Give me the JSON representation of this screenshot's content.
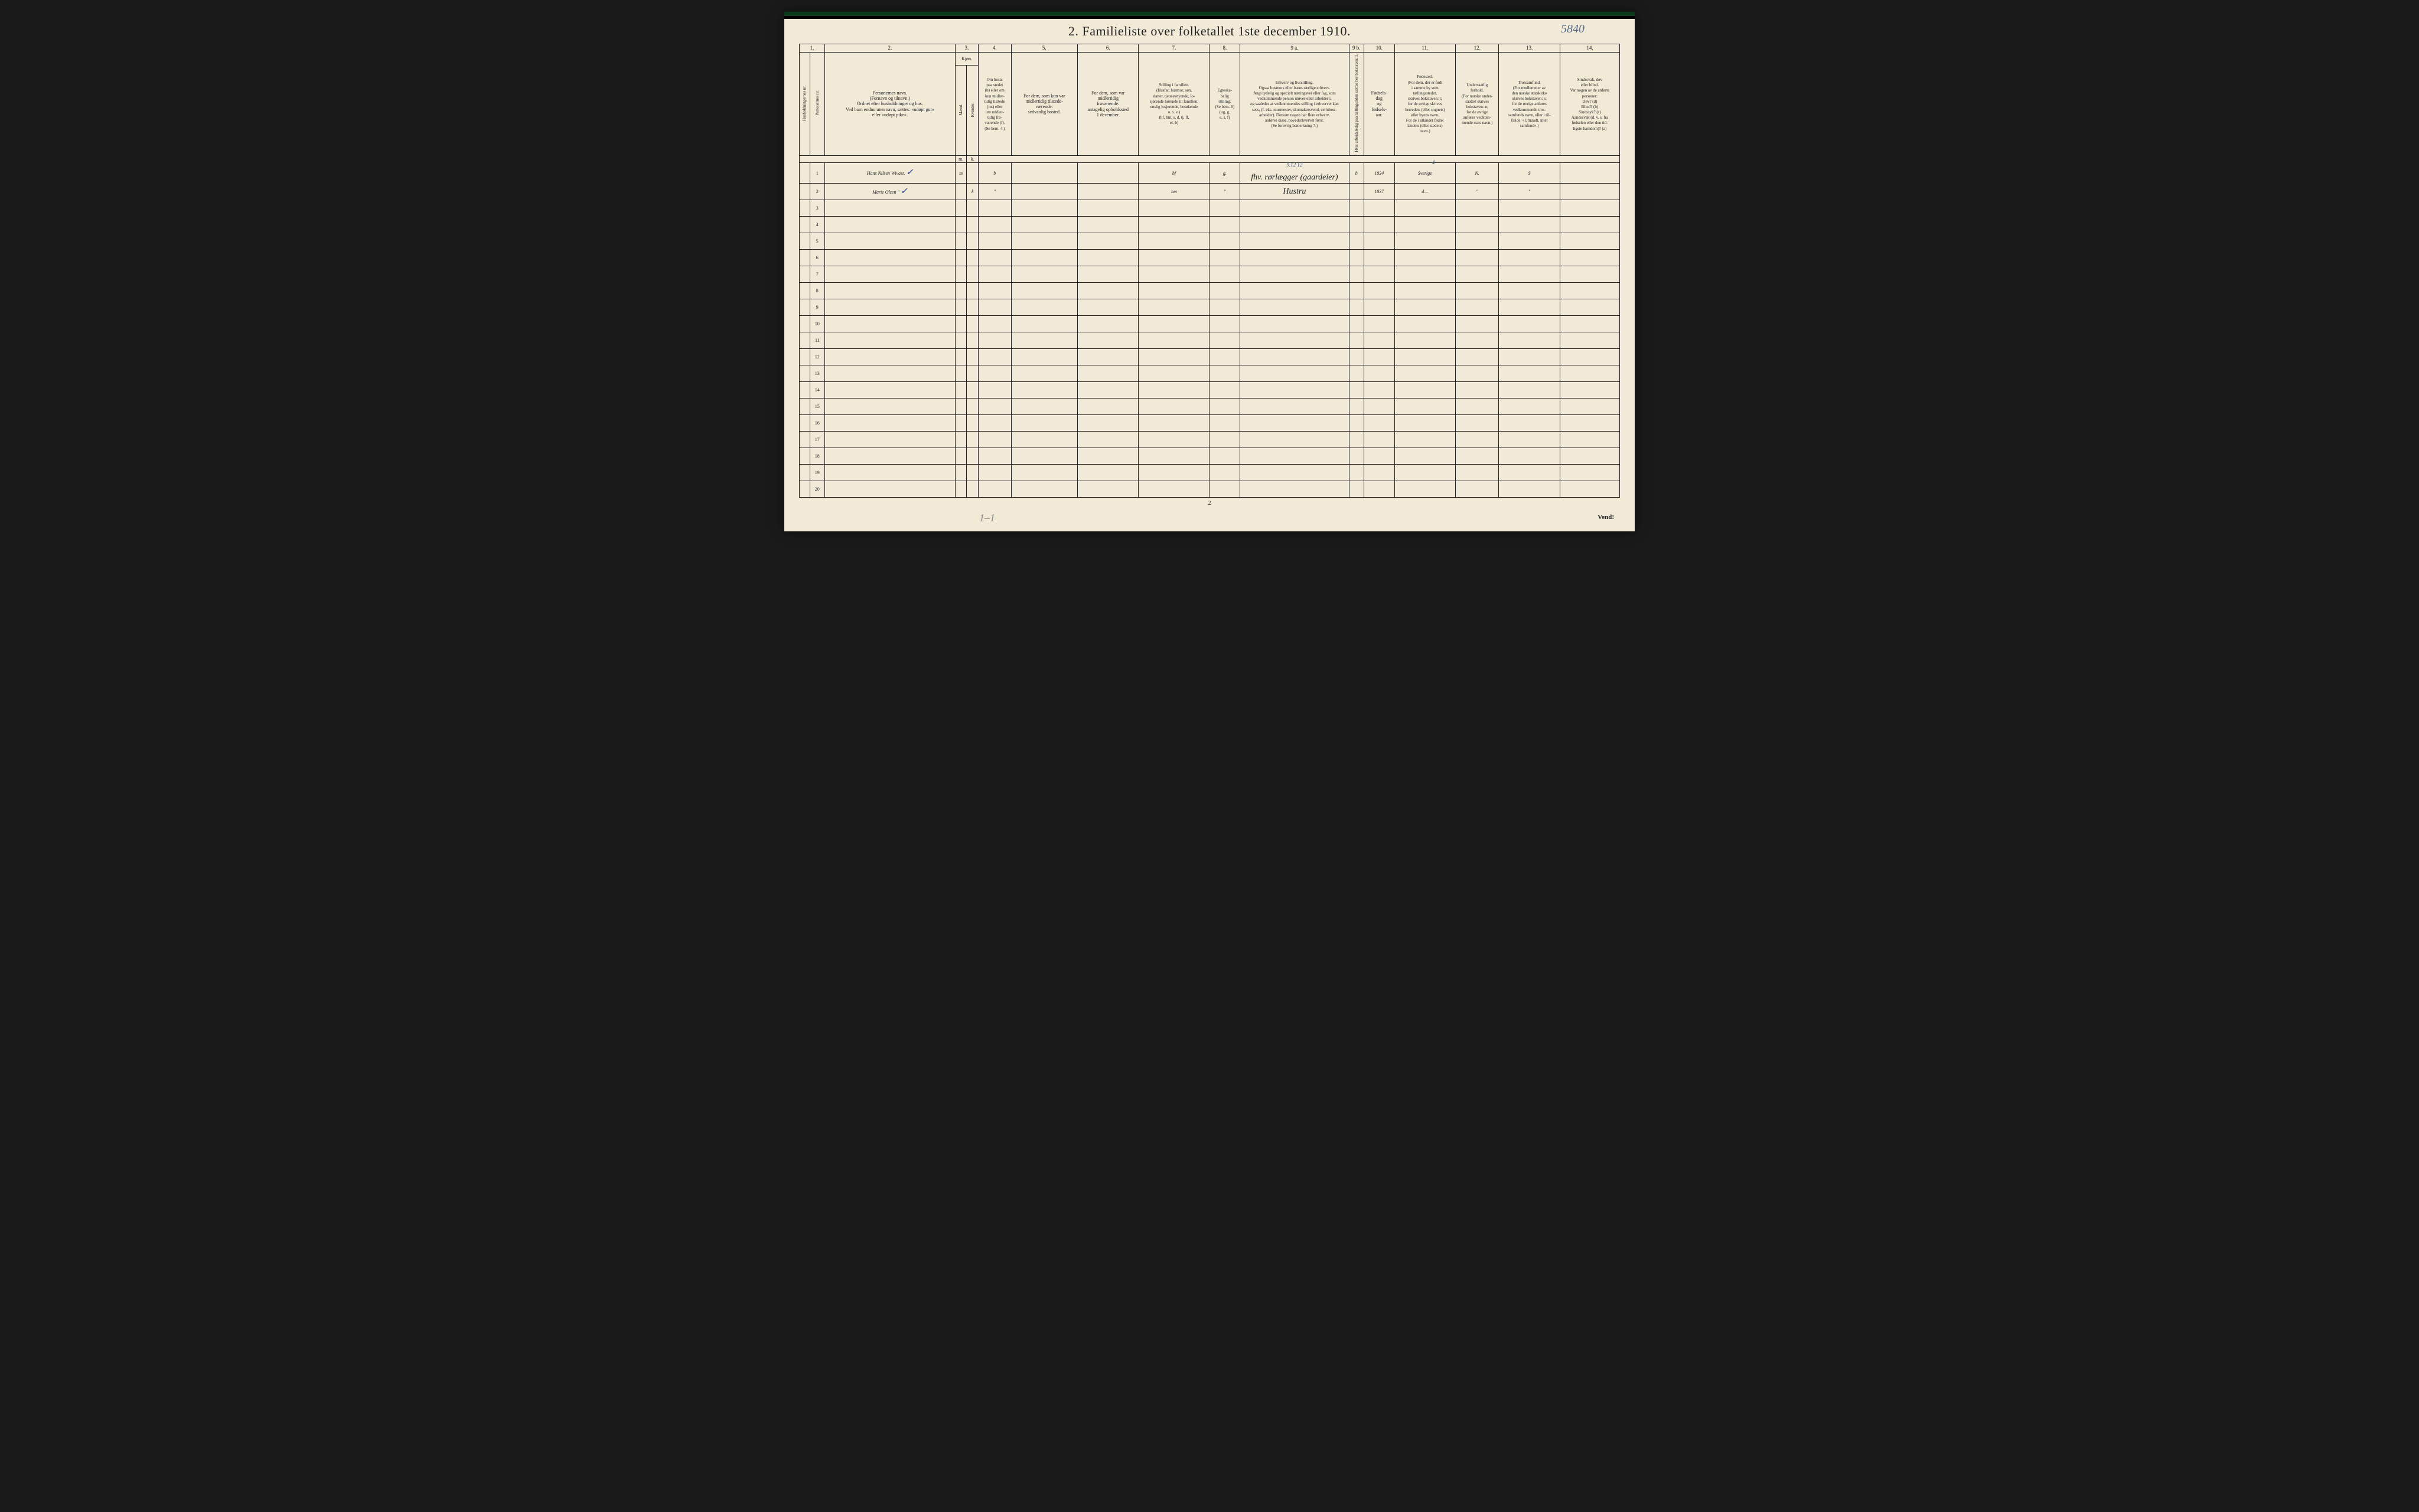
{
  "title": "2.   Familieliste over folketallet 1ste december 1910.",
  "page_id_handwritten": "5840",
  "footer_page_number": "2",
  "vend_text": "Vend!",
  "faint_bottom_mark": "1–1",
  "colors": {
    "paper": "#f0ead6",
    "ink_print": "#222222",
    "ink_handwritten": "#3a4a7a",
    "page_id_ink": "#5a6a8a",
    "outer_bg": "#1a1a1a",
    "top_border_green": "#0a3a1a"
  },
  "column_numbers": [
    "1.",
    "2.",
    "3.",
    "4.",
    "5.",
    "6.",
    "7.",
    "8.",
    "9 a.",
    "9 b.",
    "10.",
    "11.",
    "12.",
    "13.",
    "14."
  ],
  "column_widths_pct": [
    3.4,
    17.5,
    3.1,
    4.4,
    8.9,
    8.2,
    9.5,
    4.1,
    14.6,
    2.0,
    4.1,
    8.2,
    5.8,
    8.2,
    8.0
  ],
  "headers": {
    "c1a": "Husholdningernes nr.",
    "c1b": "Personernes nr.",
    "c2": "Personernes navn.\n(Fornavn og tilnavn.)\nOrdnet efter husholdninger og hus.\nVed barn endnu uten navn, sættes: «udøpt gut»\neller «udøpt pike».",
    "c3_top": "Kjøn.",
    "c3_a": "Mænd.",
    "c3_b": "Kvinder.",
    "c3_mk_m": "m.",
    "c3_mk_k": "k.",
    "c4": "Om bosat\npaa stedet\n(b) eller om\nkun midler-\ntidig tilstede\n(mt) eller\nom midler-\ntidig fra-\nværende (f).\n(Se bem. 4.)",
    "c5": "For dem, som kun var\nmidlertidig tilstede-\nværende:\nsedvanlig bosted.",
    "c6": "For dem, som var\nmidlertidig\nfraværende:\nantagelig opholdssted\n1 december.",
    "c7": "Stilling i familien.\n(Husfar, husmor, søn,\ndatter, tjenestetyende, lo-\nsjørende hørende til familien,\nenslig losjerende, besøkende\no. s. v.)\n(hf, hm, s, d, tj, fl,\nel, b)",
    "c8": "Egteska-\nbelig\nstilling.\n(Se bem. 6)\n(ug, g,\ne, s, f)",
    "c9a": "Erhverv og livsstilling.\nOgsaa husmors eller barns særlige erhverv.\nAngi tydelig og specielt næringsvei eller fag, som\nvedkommende person utøver eller arbeider i,\nog saaledes at vedkommendes stilling i erhvervet kan\nsees, (f. eks. murmester, skomakersvend, cellulose-\narbeider). Dersom nogen har flere erhverv,\nanføres disse, hovederhvervet først.\n(Se forøvrig bemerkning 7.)",
    "c9b": "Hvis arbeidsledig\npaa tællingstiden sættes\nher bokstaven: l.",
    "c10": "Fødsels-\ndag\nog\nfødsels-\naar.",
    "c11": "Fødested.\n(For dem, der er født\ni samme by som\ntællingsstedet,\nskrives bokstaven: t;\nfor de øvrige skrives\nherredets (eller sognets)\neller byens navn.\nFor de i utlandet fødte:\nlandets (eller stedets)\nnavn.)",
    "c12": "Undersaatlig\nforhold.\n(For norske under-\nsaatter skrives\nbokstaven: n;\nfor de øvrige\nanføres vedkom-\nmende stats navn.)",
    "c13": "Trossamfund.\n(For medlemmer av\nden norske statskirke\nskrives bokstaven: s;\nfor de øvrige anføres\nvedkommende tros-\nsamfunds navn, eller i til-\nfælde: «Uttraadt, intet\nsamfund».)",
    "c14": "Sindssvak, døv\neller blind.\nVar nogen av de anførte\npersoner:\nDøv?       (d)\nBlind?     (b)\nSindssyk? (s)\nAandssvak (d. v. s. fra\nfødselen eller den tid-\nligste barndom)? (a)"
  },
  "rows": [
    {
      "num": "1",
      "name": "Hans Nilsen Wivast.",
      "check": "✓",
      "sex_m": "m",
      "sex_k": "",
      "bosat": "b",
      "col5": "",
      "col6": "",
      "stilling": "hf",
      "egte": "g.",
      "erhverv": "fhv. rørlægger (gaardeier)",
      "erhverv_annot": "9.12 12",
      "c9b": "b",
      "fodselsaar": "1834",
      "fodested": "Sverige",
      "fodested_annot": "4",
      "undersaat": "N.",
      "tros": "S",
      "c14": ""
    },
    {
      "num": "2",
      "name": "Marie Olsen     \"",
      "check": "✓",
      "sex_m": "",
      "sex_k": "k",
      "bosat": "\"",
      "col5": "",
      "col6": "",
      "stilling": "hm",
      "egte": "\"",
      "erhverv": "Hustru",
      "erhverv_annot": "",
      "c9b": "",
      "fodselsaar": "1837",
      "fodested": "d—",
      "fodested_annot": "",
      "undersaat": "\"",
      "tros": "\"",
      "c14": ""
    }
  ],
  "empty_row_count": 18,
  "total_rows": 20
}
